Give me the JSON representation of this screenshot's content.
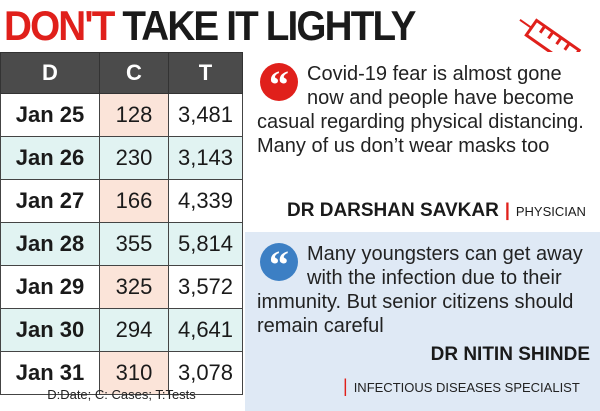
{
  "header": {
    "title_red": "DON'T",
    "title_black": "TAKE IT LIGHTLY"
  },
  "table": {
    "columns": [
      "D",
      "C",
      "T"
    ],
    "rows": [
      [
        "Jan 25",
        "128",
        "3,481"
      ],
      [
        "Jan 26",
        "230",
        "3,143"
      ],
      [
        "Jan 27",
        "166",
        "4,339"
      ],
      [
        "Jan 28",
        "355",
        "5,814"
      ],
      [
        "Jan 29",
        "325",
        "3,572"
      ],
      [
        "Jan 30",
        "294",
        "4,641"
      ],
      [
        "Jan 31",
        "310",
        "3,078"
      ]
    ],
    "key": "D:Date; C: Cases; T:Tests"
  },
  "quotes": [
    {
      "text": "Covid-19 fear is almost gone now and people have become casual regarding physical distancing. Many of us don’t wear masks too",
      "name": "DR DARSHAN SAVKAR",
      "role": "PHYSICIAN"
    },
    {
      "text": "Many youngsters can get away with the infection due to their immunity. But senior citizens should remain careful",
      "name": "DR NITIN SHINDE",
      "role": "INFECTIOUS DISEASES SPECIALIST"
    }
  ]
}
